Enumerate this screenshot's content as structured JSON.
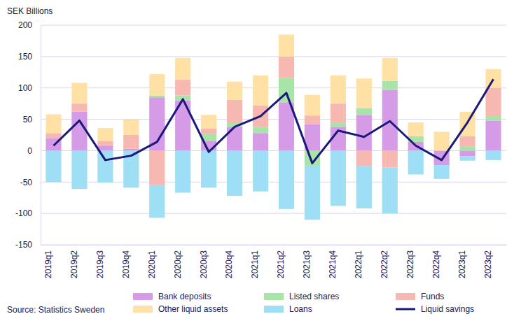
{
  "chart_data": {
    "type": "bar",
    "stacked": true,
    "grid": true,
    "legend": "bottom",
    "y_label": "SEK Billions",
    "source": "Source: Statistics Sweden",
    "categories": [
      "2019q1",
      "2019q2",
      "2019q3",
      "2019q4",
      "2020q1",
      "2020q2",
      "2020q3",
      "2020q4",
      "2021q1",
      "2021q2",
      "2021q3",
      "2021q4",
      "2022q1",
      "2022q2",
      "2022q3",
      "2022q4",
      "2023q1",
      "2023q2"
    ],
    "ylim": [
      -150,
      200
    ],
    "yticks": [
      -150,
      -100,
      -50,
      0,
      50,
      100,
      150,
      200
    ],
    "series": [
      {
        "name": "Bank deposits",
        "color": "#d69be6",
        "values": [
          20,
          62,
          8,
          3,
          85,
          80,
          15,
          38,
          28,
          77,
          42,
          38,
          57,
          97,
          14,
          -23,
          -9,
          48
        ]
      },
      {
        "name": "Listed shares",
        "color": "#a8e3a8",
        "values": [
          0,
          0,
          0,
          0,
          3,
          8,
          12,
          7,
          10,
          39,
          -25,
          6,
          11,
          14,
          9,
          0,
          7,
          7
        ]
      },
      {
        "name": "Funds",
        "color": "#f6b8b0",
        "values": [
          8,
          13,
          7,
          22,
          -55,
          25,
          8,
          36,
          34,
          34,
          14,
          31,
          -25,
          -27,
          0,
          0,
          16,
          45
        ]
      },
      {
        "name": "Other liquid assets",
        "color": "#ffe1a6",
        "values": [
          30,
          33,
          21,
          25,
          34,
          35,
          22,
          29,
          48,
          35,
          33,
          45,
          47,
          37,
          22,
          30,
          39,
          30
        ]
      },
      {
        "name": "Loans",
        "color": "#9edff6",
        "values": [
          -50,
          -61,
          -51,
          -59,
          -52,
          -67,
          -59,
          -72,
          -65,
          -93,
          -85,
          -88,
          -67,
          -73,
          -38,
          -22,
          -7,
          -15
        ]
      },
      {
        "name": "Liquid savings",
        "type": "line",
        "color": "#1b1a7a",
        "values": [
          8,
          48,
          -15,
          -8,
          14,
          82,
          -2,
          38,
          55,
          92,
          -20,
          32,
          22,
          47,
          8,
          -15,
          45,
          114
        ]
      }
    ]
  }
}
